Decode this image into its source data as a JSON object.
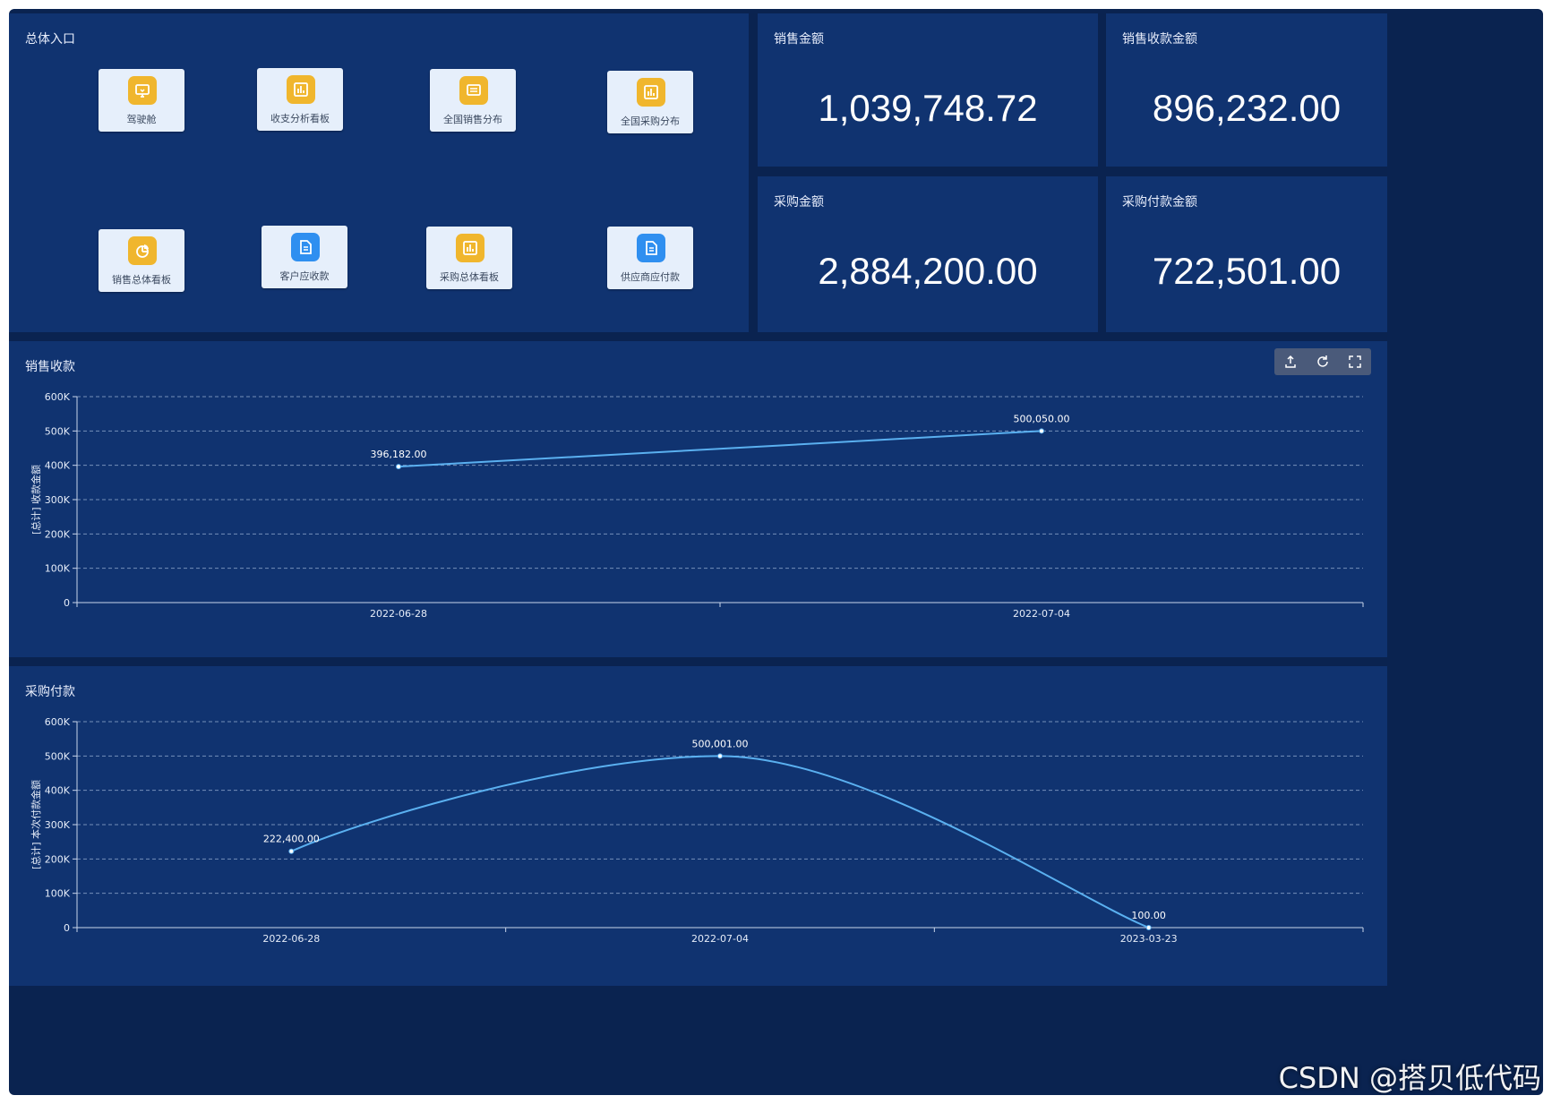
{
  "entry_panel": {
    "title": "总体入口",
    "tiles": [
      {
        "label": "驾驶舱",
        "icon": "monitor-icon",
        "color": "#f0b62d"
      },
      {
        "label": "收支分析看板",
        "icon": "bar-chart-icon",
        "color": "#f0b62d"
      },
      {
        "label": "全国销售分布",
        "icon": "list-icon",
        "color": "#f0b62d"
      },
      {
        "label": "全国采购分布",
        "icon": "bar-chart-icon",
        "color": "#f0b62d"
      },
      {
        "label": "销售总体看板",
        "icon": "pie-chart-icon",
        "color": "#f0b62d"
      },
      {
        "label": "客户应收款",
        "icon": "document-icon",
        "color": "#2f8ff0"
      },
      {
        "label": "采购总体看板",
        "icon": "bar-chart-icon",
        "color": "#f0b62d"
      },
      {
        "label": "供应商应付款",
        "icon": "document-icon",
        "color": "#2f8ff0"
      }
    ]
  },
  "kpis": [
    {
      "title": "销售金额",
      "value": "1,039,748.72"
    },
    {
      "title": "销售收款金额",
      "value": "896,232.00"
    },
    {
      "title": "采购金额",
      "value": "2,884,200.00"
    },
    {
      "title": "采购付款金额",
      "value": "722,501.00"
    }
  ],
  "sales_chart_panel": {
    "title": "销售收款",
    "toolbar": [
      "export-icon",
      "refresh-icon",
      "fullscreen-icon"
    ]
  },
  "purchase_chart_panel": {
    "title": "采购付款"
  },
  "chart_data": [
    {
      "type": "line",
      "title": "",
      "categories": [
        "2022-06-28",
        "2022-07-04"
      ],
      "series": [
        {
          "values": [
            396182.0,
            500050.0
          ]
        }
      ],
      "data_labels": [
        "396,182.00",
        "500,050.00"
      ],
      "ylabel": "[总计] 收款金额",
      "ylim": [
        0,
        600000
      ],
      "yticks": [
        "0",
        "100K",
        "200K",
        "300K",
        "400K",
        "500K",
        "600K"
      ],
      "grid": true,
      "smooth": false,
      "line_color": "#5ab0f0"
    },
    {
      "type": "line",
      "title": "",
      "categories": [
        "2022-06-28",
        "2022-07-04",
        "2023-03-23"
      ],
      "series": [
        {
          "values": [
            222400.0,
            500001.0,
            100.0
          ]
        }
      ],
      "data_labels": [
        "222,400.00",
        "500,001.00",
        "100.00"
      ],
      "ylabel": "[总计] 本次付款金额",
      "ylim": [
        0,
        600000
      ],
      "yticks": [
        "0",
        "100K",
        "200K",
        "300K",
        "400K",
        "500K",
        "600K"
      ],
      "grid": true,
      "smooth": true,
      "line_color": "#5ab0f0"
    }
  ],
  "watermark": "CSDN @搭贝低代码"
}
